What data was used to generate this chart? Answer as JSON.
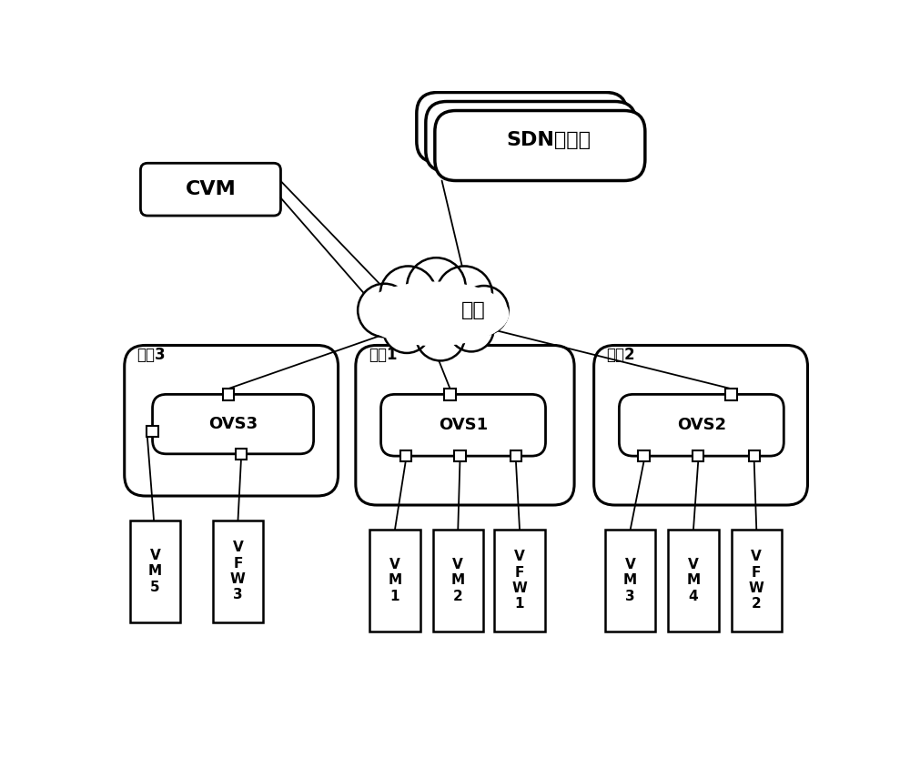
{
  "bg_color": "#ffffff",
  "sdn_label": "SDN控制器",
  "cvm_label": "CVM",
  "network_label": "网络",
  "host3_label": "主机3",
  "host1_label": "主机1",
  "host2_label": "主机2",
  "ovs3_label": "OVS3",
  "ovs1_label": "OVS1",
  "ovs2_label": "OVS2",
  "vm5_label": "V\nM\n5",
  "vfw3_label": "V\nF\nW\n3",
  "vm1_label": "V\nM\n1",
  "vm2_label": "V\nM\n2",
  "vfw1_label": "V\nF\nW\n1",
  "vm3_label": "V\nM\n3",
  "vm4_label": "V\nM\n4",
  "vfw2_label": "V\nF\nW\n2",
  "font_size_large": 16,
  "font_size_medium": 13,
  "font_size_small": 11,
  "font_size_host": 12
}
